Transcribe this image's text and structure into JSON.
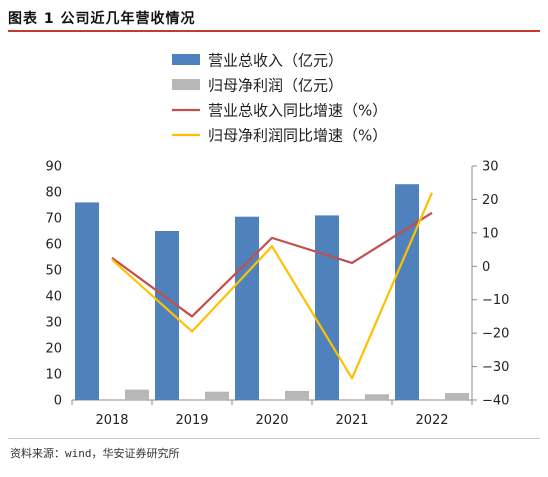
{
  "figure": {
    "title": "图表 1 公司近几年营收情况",
    "source": "资料来源：wind，华安证券研究所"
  },
  "chart_data": {
    "type": "bar",
    "categories": [
      "2018",
      "2019",
      "2020",
      "2021",
      "2022"
    ],
    "series": [
      {
        "name": "营业总收入（亿元）",
        "kind": "bar",
        "axis": "left",
        "color": "#4f81bd",
        "values": [
          76,
          65,
          70.5,
          71,
          83
        ]
      },
      {
        "name": "归母净利润（亿元）",
        "kind": "bar",
        "axis": "left",
        "color": "#b7b7b7",
        "values": [
          4,
          3.2,
          3.5,
          2.2,
          2.7
        ]
      },
      {
        "name": "营业总收入同比增速（%）",
        "kind": "line",
        "axis": "right",
        "color": "#c0504d",
        "values": [
          2.5,
          -15,
          8.5,
          1,
          16
        ]
      },
      {
        "name": "归母净利润同比增速（%）",
        "kind": "line",
        "axis": "right",
        "color": "#ffc000",
        "values": [
          2,
          -19.5,
          6,
          -33.5,
          22
        ]
      }
    ],
    "y_left": {
      "min": 0,
      "max": 90,
      "step": 10,
      "ticks": [
        "0",
        "10",
        "20",
        "30",
        "40",
        "50",
        "60",
        "70",
        "80",
        "90"
      ]
    },
    "y_right": {
      "min": -40,
      "max": 30,
      "step": 10,
      "ticks": [
        "−40",
        "−30",
        "−20",
        "−10",
        "0",
        "10",
        "20",
        "30"
      ]
    },
    "legend_position": "top",
    "grid": false
  }
}
